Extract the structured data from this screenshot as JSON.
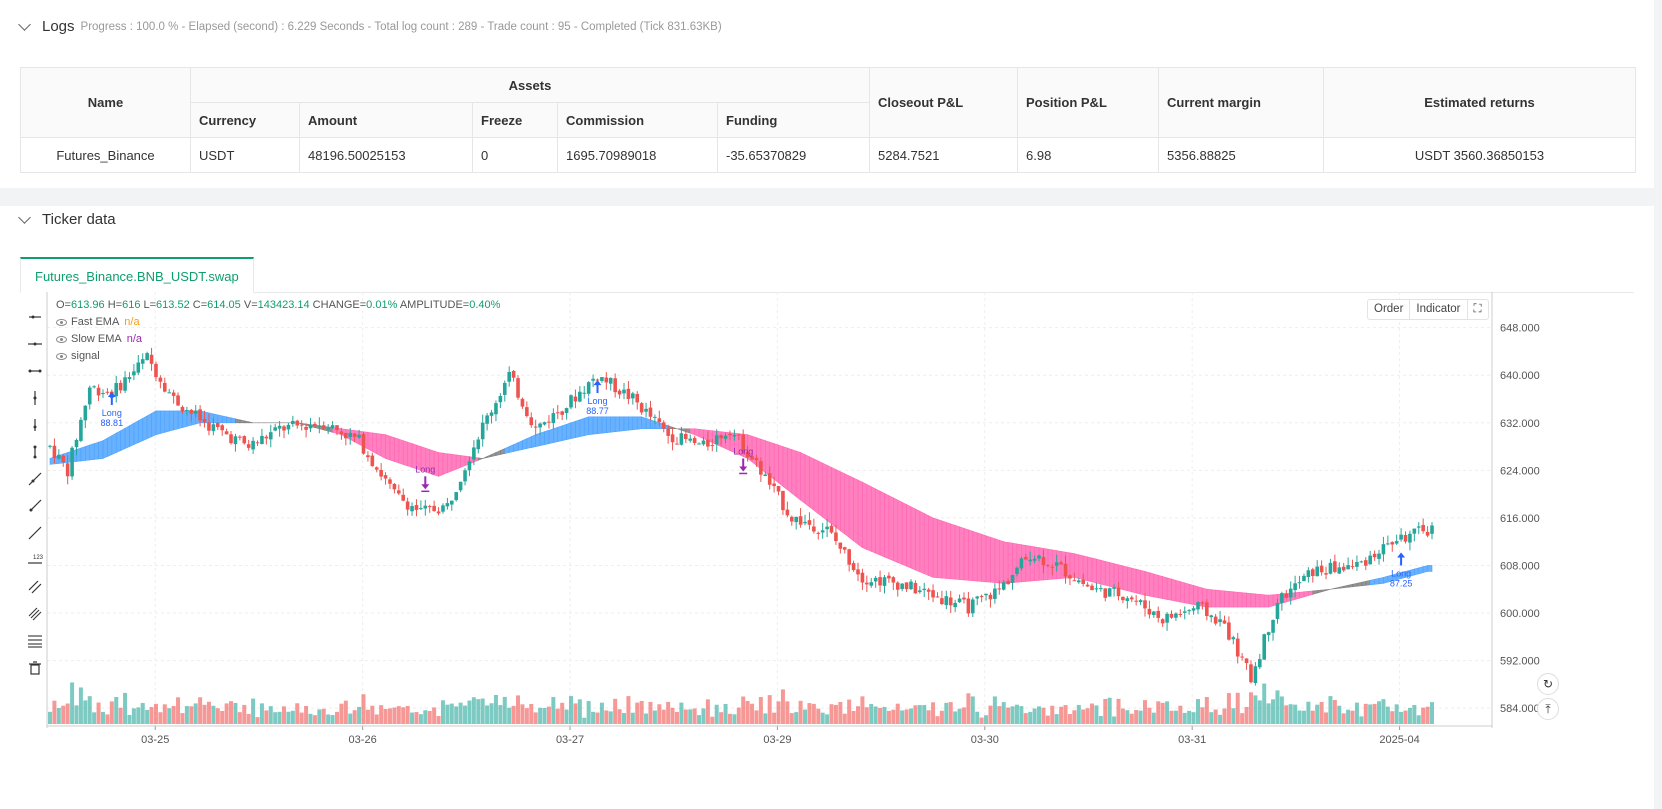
{
  "logs": {
    "title": "Logs",
    "meta": "Progress : 100.0 % - Elapsed (second) : 6.229  Seconds - Total log count : 289 - Trade count : 95 - Completed (Tick 831.63KB)",
    "table": {
      "headers": {
        "name": "Name",
        "assets": "Assets",
        "currency": "Currency",
        "amount": "Amount",
        "freeze": "Freeze",
        "commission": "Commission",
        "funding": "Funding",
        "closeout_pnl": "Closeout P&L",
        "position_pnl": "Position P&L",
        "current_margin": "Current margin",
        "estimated_returns": "Estimated returns"
      },
      "row": {
        "name": "Futures_Binance",
        "currency": "USDT",
        "amount": "48196.50025153",
        "freeze": "0",
        "commission": "1695.70989018",
        "funding": "-35.65370829",
        "closeout_pnl": "5284.7521",
        "position_pnl": "6.98",
        "current_margin": "5356.88825",
        "estimated_returns": "USDT 3560.36850153"
      }
    }
  },
  "ticker": {
    "title": "Ticker data",
    "tab": "Futures_Binance.BNB_USDT.swap",
    "buttons": {
      "order": "Order",
      "indicator": "Indicator"
    },
    "legend": {
      "ohlc": [
        {
          "k": "O=",
          "v": "613.96"
        },
        {
          "k": " H=",
          "v": "616"
        },
        {
          "k": " L=",
          "v": "613.52"
        },
        {
          "k": " C=",
          "v": "614.05"
        },
        {
          "k": " V=",
          "v": "143423.14"
        },
        {
          "k": "  CHANGE=",
          "v": "0.01%"
        },
        {
          "k": "  AMPLITUDE=",
          "v": "0.40%"
        }
      ],
      "fast_ema": {
        "label": "Fast EMA",
        "value": "n/a"
      },
      "slow_ema": {
        "label": "Slow EMA",
        "value": "n/a"
      },
      "signal": {
        "label": "signal"
      }
    },
    "toolbar_icons": [
      "horizontal-ray-icon",
      "horizontal-line-icon",
      "horizontal-segment-icon",
      "vertical-line-icon",
      "vertical-ray-icon",
      "vertical-segment-icon",
      "trend-line-icon",
      "ray-line-icon",
      "extended-line-icon",
      "price-label-icon",
      "parallel-channel-icon",
      "pitchfork-icon",
      "fib-retracement-icon",
      "delete-icon"
    ],
    "colors": {
      "up": "#26a69a",
      "down": "#ef5350",
      "bull_band": "#4da3ff",
      "bear_band": "#ff69b4",
      "neutral_band": "#808080",
      "long_blue": "#2962ff",
      "long_purple": "#9c27b0"
    }
  },
  "chart_data": {
    "type": "candlestick",
    "symbol": "Futures_Binance.BNB_USDT.swap",
    "x_ticks": [
      "03-25",
      "03-26",
      "03-27",
      "03-29",
      "03-30",
      "03-31",
      "2025-04"
    ],
    "y_ticks": [
      "648.000",
      "640.000",
      "632.000",
      "624.000",
      "616.000",
      "608.000",
      "600.000",
      "592.000",
      "584.000"
    ],
    "ylim": [
      581,
      654
    ],
    "price_path": [
      {
        "t": 0,
        "p": 628
      },
      {
        "t": 4,
        "p": 624
      },
      {
        "t": 9,
        "p": 638
      },
      {
        "t": 14,
        "p": 637
      },
      {
        "t": 22,
        "p": 643
      },
      {
        "t": 28,
        "p": 636
      },
      {
        "t": 35,
        "p": 632
      },
      {
        "t": 45,
        "p": 628
      },
      {
        "t": 52,
        "p": 631
      },
      {
        "t": 62,
        "p": 632
      },
      {
        "t": 70,
        "p": 629
      },
      {
        "t": 78,
        "p": 620
      },
      {
        "t": 84,
        "p": 617
      },
      {
        "t": 90,
        "p": 618
      },
      {
        "t": 97,
        "p": 630
      },
      {
        "t": 104,
        "p": 640
      },
      {
        "t": 110,
        "p": 631
      },
      {
        "t": 117,
        "p": 635
      },
      {
        "t": 124,
        "p": 640
      },
      {
        "t": 132,
        "p": 636
      },
      {
        "t": 140,
        "p": 630
      },
      {
        "t": 148,
        "p": 628
      },
      {
        "t": 154,
        "p": 631
      },
      {
        "t": 160,
        "p": 625
      },
      {
        "t": 168,
        "p": 616
      },
      {
        "t": 176,
        "p": 614
      },
      {
        "t": 184,
        "p": 606
      },
      {
        "t": 192,
        "p": 605
      },
      {
        "t": 200,
        "p": 603
      },
      {
        "t": 208,
        "p": 601
      },
      {
        "t": 215,
        "p": 604
      },
      {
        "t": 222,
        "p": 610
      },
      {
        "t": 228,
        "p": 608
      },
      {
        "t": 236,
        "p": 604
      },
      {
        "t": 244,
        "p": 603
      },
      {
        "t": 252,
        "p": 599
      },
      {
        "t": 260,
        "p": 601
      },
      {
        "t": 266,
        "p": 598
      },
      {
        "t": 272,
        "p": 589
      },
      {
        "t": 278,
        "p": 602
      },
      {
        "t": 286,
        "p": 607
      },
      {
        "t": 296,
        "p": 608
      },
      {
        "t": 304,
        "p": 612
      },
      {
        "t": 312,
        "p": 614
      }
    ],
    "fast_ema_path": [
      {
        "t": 0,
        "p": 626
      },
      {
        "t": 12,
        "p": 629
      },
      {
        "t": 24,
        "p": 634
      },
      {
        "t": 34,
        "p": 634
      },
      {
        "t": 46,
        "p": 632
      },
      {
        "t": 56,
        "p": 632
      },
      {
        "t": 66,
        "p": 630
      },
      {
        "t": 76,
        "p": 626
      },
      {
        "t": 88,
        "p": 623
      },
      {
        "t": 98,
        "p": 626
      },
      {
        "t": 110,
        "p": 630
      },
      {
        "t": 122,
        "p": 633
      },
      {
        "t": 134,
        "p": 633
      },
      {
        "t": 146,
        "p": 630
      },
      {
        "t": 158,
        "p": 626
      },
      {
        "t": 170,
        "p": 619
      },
      {
        "t": 184,
        "p": 611
      },
      {
        "t": 200,
        "p": 606
      },
      {
        "t": 216,
        "p": 605
      },
      {
        "t": 232,
        "p": 606
      },
      {
        "t": 248,
        "p": 603
      },
      {
        "t": 262,
        "p": 601
      },
      {
        "t": 276,
        "p": 601
      },
      {
        "t": 290,
        "p": 604
      },
      {
        "t": 302,
        "p": 606
      },
      {
        "t": 312,
        "p": 608
      }
    ],
    "slow_ema_path": [
      {
        "t": 0,
        "p": 625
      },
      {
        "t": 12,
        "p": 626
      },
      {
        "t": 24,
        "p": 630
      },
      {
        "t": 34,
        "p": 632
      },
      {
        "t": 46,
        "p": 632
      },
      {
        "t": 56,
        "p": 632
      },
      {
        "t": 66,
        "p": 631
      },
      {
        "t": 76,
        "p": 630
      },
      {
        "t": 88,
        "p": 627
      },
      {
        "t": 98,
        "p": 626
      },
      {
        "t": 110,
        "p": 628
      },
      {
        "t": 122,
        "p": 630
      },
      {
        "t": 134,
        "p": 631
      },
      {
        "t": 146,
        "p": 631
      },
      {
        "t": 158,
        "p": 630
      },
      {
        "t": 170,
        "p": 627
      },
      {
        "t": 184,
        "p": 622
      },
      {
        "t": 200,
        "p": 616
      },
      {
        "t": 216,
        "p": 612
      },
      {
        "t": 232,
        "p": 610
      },
      {
        "t": 248,
        "p": 607
      },
      {
        "t": 262,
        "p": 604
      },
      {
        "t": 276,
        "p": 603
      },
      {
        "t": 290,
        "p": 604
      },
      {
        "t": 302,
        "p": 605
      },
      {
        "t": 312,
        "p": 607
      }
    ],
    "signals": [
      {
        "label": "Long",
        "value": "88.81",
        "t": 14,
        "p": 635,
        "dir": "up",
        "color": "long_blue"
      },
      {
        "label": "Long",
        "value": "",
        "t": 85,
        "p": 623,
        "dir": "down",
        "color": "long_purple"
      },
      {
        "label": "Long",
        "value": "88.77",
        "t": 124,
        "p": 637,
        "dir": "up",
        "color": "long_blue"
      },
      {
        "label": "Long",
        "value": "",
        "t": 157,
        "p": 626,
        "dir": "down",
        "color": "long_purple"
      },
      {
        "label": "Long",
        "value": "87.25",
        "t": 306,
        "p": 608,
        "dir": "up",
        "color": "long_blue"
      }
    ]
  }
}
